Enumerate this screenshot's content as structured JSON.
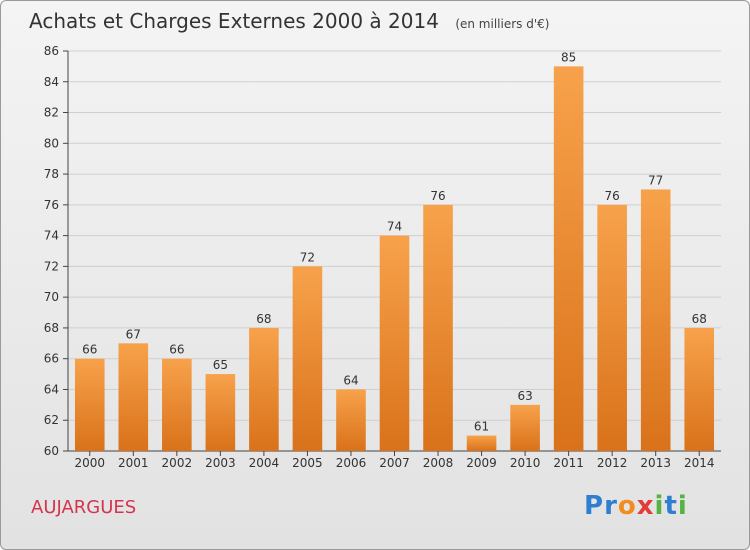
{
  "header": {
    "title": "Achats et Charges Externes 2000 à 2014",
    "subtitle": "(en milliers d'€)"
  },
  "commune": "AUJARGUES",
  "logo": {
    "letters": [
      "P",
      "r",
      "o",
      "x",
      "i",
      "t",
      "i"
    ],
    "colors": [
      "#2f7fd1",
      "#2f7fd1",
      "#f28c1f",
      "#e23b3b",
      "#54b443",
      "#2f7fd1",
      "#54b443"
    ]
  },
  "colors": {
    "bar_top": "#f7a24b",
    "bar_bottom": "#d9721a",
    "axis": "#444444",
    "grid": "#cfcfcf"
  },
  "chart_data": {
    "type": "bar",
    "categories": [
      "2000",
      "2001",
      "2002",
      "2003",
      "2004",
      "2005",
      "2006",
      "2007",
      "2008",
      "2009",
      "2010",
      "2011",
      "2012",
      "2013",
      "2014"
    ],
    "values": [
      66,
      67,
      66,
      65,
      68,
      72,
      64,
      74,
      76,
      61,
      63,
      85,
      76,
      77,
      68
    ],
    "ylim": [
      60,
      86
    ],
    "yticks": [
      60,
      62,
      64,
      66,
      68,
      70,
      72,
      74,
      76,
      78,
      80,
      82,
      84,
      86
    ],
    "xlabel": "",
    "ylabel": "",
    "grid": true
  }
}
